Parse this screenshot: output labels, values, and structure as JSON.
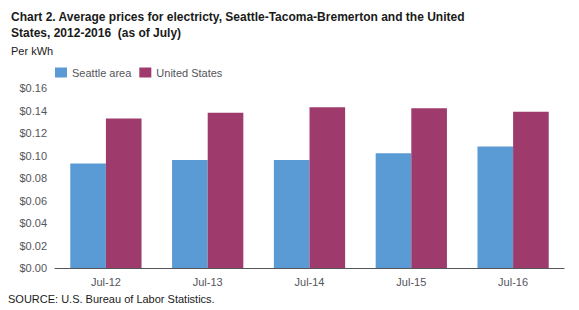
{
  "chart_data": {
    "type": "bar",
    "title": "Chart 2. Average prices for electricty, Seattle-Tacoma-Bremerton and the United\nStates, 2012-2016  (as of July)",
    "subtitle": "Per kWh",
    "annotations": [
      "SOURCE: U.S. Bureau of Labor Statistics."
    ],
    "categories": [
      "Jul-12",
      "Jul-13",
      "Jul-14",
      "Jul-15",
      "Jul-16"
    ],
    "series": [
      {
        "name": "Seattle area",
        "color": "#5B9BD5",
        "values": [
          0.093,
          0.096,
          0.096,
          0.102,
          0.108
        ]
      },
      {
        "name": "United States",
        "color": "#9E3A6C",
        "values": [
          0.133,
          0.138,
          0.143,
          0.142,
          0.139
        ]
      }
    ],
    "ylim": [
      0,
      0.16
    ],
    "yticks": [
      {
        "value": 0.0,
        "label": "$0.00"
      },
      {
        "value": 0.02,
        "label": "$0.02"
      },
      {
        "value": 0.04,
        "label": "$0.04"
      },
      {
        "value": 0.06,
        "label": "$0.06"
      },
      {
        "value": 0.08,
        "label": "$0.08"
      },
      {
        "value": 0.1,
        "label": "$0.10"
      },
      {
        "value": 0.12,
        "label": "$0.12"
      },
      {
        "value": 0.14,
        "label": "$0.14"
      },
      {
        "value": 0.16,
        "label": "$0.16"
      }
    ],
    "grid": false,
    "legend": "upper left"
  }
}
